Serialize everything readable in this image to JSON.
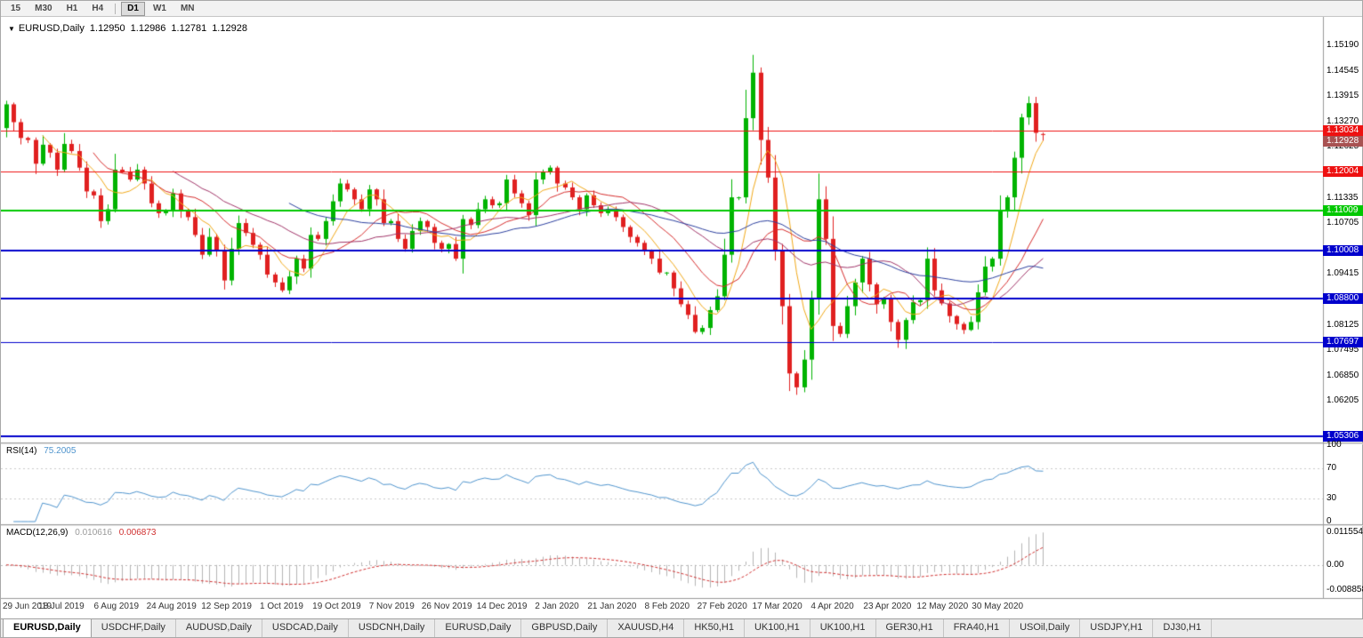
{
  "ui": {
    "toolbar": {
      "periods": [
        {
          "label": "15",
          "active": false
        },
        {
          "label": "M30",
          "active": false
        },
        {
          "label": "H1",
          "active": false
        },
        {
          "label": "H4",
          "active": false
        },
        {
          "label": "D1",
          "active": true
        },
        {
          "label": "W1",
          "active": false
        },
        {
          "label": "MN",
          "active": false
        }
      ],
      "separator_after_index": 3
    },
    "title": {
      "dropdown_icon": "▼",
      "symbol": "EURUSD,Daily",
      "open": "1.12950",
      "high": "1.12986",
      "low": "1.12781",
      "close": "1.12928"
    },
    "rsi": {
      "name": "RSI(14)",
      "value": "75.2005"
    },
    "macd": {
      "name": "MACD(12,26,9)",
      "value": "0.010616",
      "signal": "0.006873"
    },
    "colors": {
      "up": "#00b300",
      "down": "#e02020",
      "rsi": "#4f94cd",
      "macd_hist": "#b4b4b4",
      "macd_signal": "#d03030",
      "bid_badge": "#a85252",
      "axis_text": "#000000"
    },
    "tabs": [
      {
        "label": "EURUSD,Daily",
        "active": true
      },
      {
        "label": "USDCHF,Daily",
        "active": false
      },
      {
        "label": "AUDUSD,Daily",
        "active": false
      },
      {
        "label": "USDCAD,Daily",
        "active": false
      },
      {
        "label": "USDCNH,Daily",
        "active": false
      },
      {
        "label": "EURUSD,Daily",
        "active": false
      },
      {
        "label": "GBPUSD,Daily",
        "active": false
      },
      {
        "label": "XAUUSD,H4",
        "active": false
      },
      {
        "label": "HK50,H1",
        "active": false
      },
      {
        "label": "UK100,H1",
        "active": false
      },
      {
        "label": "UK100,H1",
        "active": false
      },
      {
        "label": "GER30,H1",
        "active": false
      },
      {
        "label": "FRA40,H1",
        "active": false
      },
      {
        "label": "USOil,Daily",
        "active": false
      },
      {
        "label": "USDJPY,H1",
        "active": false
      },
      {
        "label": "DJ30,H1",
        "active": false
      }
    ]
  },
  "chart_data": {
    "type": "candlestick",
    "symbol": "EURUSD",
    "timeframe": "Daily",
    "current_ohlc": {
      "open": 1.1295,
      "high": 1.12986,
      "low": 1.12781,
      "close": 1.12928
    },
    "bid_price": 1.12928,
    "price_axis_range": [
      1.052,
      1.1582
    ],
    "price_ticks": [
      1.1519,
      1.14545,
      1.13915,
      1.1327,
      1.12625,
      1.11335,
      1.10705,
      1.09415,
      1.08125,
      1.07495,
      1.0685,
      1.06205
    ],
    "x_axis_dates": [
      "29 Jun 2019",
      "18 Jul 2019",
      "6 Aug 2019",
      "24 Aug 2019",
      "12 Sep 2019",
      "1 Oct 2019",
      "19 Oct 2019",
      "7 Nov 2019",
      "26 Nov 2019",
      "14 Dec 2019",
      "2 Jan 2020",
      "21 Jan 2020",
      "8 Feb 2020",
      "27 Feb 2020",
      "17 Mar 2020",
      "4 Apr 2020",
      "23 Apr 2020",
      "12 May 2020",
      "30 May 2020"
    ],
    "horizontal_levels": [
      {
        "price": 1.13034,
        "color": "#ee1111",
        "width": 1
      },
      {
        "price": 1.12004,
        "color": "#ee1111",
        "width": 1
      },
      {
        "price": 1.11009,
        "color": "#00c800",
        "width": 2
      },
      {
        "price": 1.10008,
        "color": "#0000cc",
        "width": 2
      },
      {
        "price": 1.088,
        "color": "#0000cc",
        "width": 2
      },
      {
        "price": 1.07697,
        "color": "#0000cc",
        "width": 1
      },
      {
        "price": 1.05306,
        "color": "#0000cc",
        "width": 2
      }
    ],
    "moving_averages": [
      {
        "period": 6,
        "color": "#f0a818"
      },
      {
        "period": 13,
        "color": "#d62c2c"
      },
      {
        "period": 24,
        "color": "#a03468"
      },
      {
        "period": 40,
        "color": "#2b3f9e"
      }
    ],
    "indicators": [
      {
        "name": "RSI",
        "period": 14,
        "value": 75.2005,
        "levels": [
          100,
          70,
          30,
          0
        ]
      },
      {
        "name": "MACD",
        "fast": 12,
        "slow": 26,
        "signal": 9,
        "value": 0.010616,
        "signal_value": 0.006873,
        "axis_labels": [
          {
            "text": "0.0115544",
            "value": 0.0115544
          },
          {
            "text": "0.00",
            "value": 0
          },
          {
            "text": "-0.0088585",
            "value": -0.0088585
          }
        ]
      }
    ],
    "first_open": 1.131,
    "closes": [
      1.137,
      1.1325,
      1.1285,
      1.128,
      1.122,
      1.1268,
      1.1248,
      1.1205,
      1.127,
      1.1252,
      1.121,
      1.115,
      1.114,
      1.1075,
      1.1105,
      1.1205,
      1.12,
      1.118,
      1.1205,
      1.117,
      1.112,
      1.1095,
      1.11,
      1.1145,
      1.11,
      1.1085,
      1.104,
      1.099,
      1.1035,
      1.1,
      1.0925,
      1.1005,
      1.107,
      1.1045,
      1.1015,
      1.099,
      1.094,
      1.092,
      1.09,
      1.0935,
      1.098,
      1.0955,
      1.104,
      1.103,
      1.1075,
      1.1125,
      1.117,
      1.1155,
      1.113,
      1.1105,
      1.1155,
      1.113,
      1.107,
      1.1075,
      1.103,
      1.1005,
      1.105,
      1.1075,
      1.106,
      1.102,
      1.1005,
      1.1017,
      1.098,
      1.108,
      1.1065,
      1.1105,
      1.113,
      1.1115,
      1.112,
      1.118,
      1.1145,
      1.112,
      1.109,
      1.118,
      1.12,
      1.121,
      1.117,
      1.116,
      1.1135,
      1.1105,
      1.114,
      1.1115,
      1.1095,
      1.1105,
      1.1085,
      1.106,
      1.1035,
      1.102,
      1.1,
      1.098,
      1.0945,
      1.0945,
      1.0905,
      1.0865,
      1.0838,
      1.0795,
      1.0805,
      1.085,
      1.0885,
      1.099,
      1.1135,
      1.1135,
      1.1335,
      1.145,
      1.128,
      1.1185,
      1.1,
      1.086,
      1.069,
      1.0655,
      1.0725,
      1.088,
      1.113,
      1.103,
      1.081,
      1.079,
      1.086,
      1.092,
      1.098,
      1.0915,
      1.0865,
      1.088,
      1.082,
      1.0775,
      1.0825,
      1.087,
      1.0875,
      1.098,
      1.09,
      1.0867,
      1.0835,
      1.0815,
      1.08,
      1.082,
      1.0895,
      1.096,
      1.098,
      1.1101,
      1.1135,
      1.1235,
      1.1337,
      1.1373,
      1.1298,
      1.1293
    ],
    "wick_overrides": [
      {
        "index": 103,
        "high": 1.1495
      },
      {
        "index": 109,
        "low": 1.0636
      },
      {
        "index": 141,
        "high": 1.139
      }
    ]
  }
}
